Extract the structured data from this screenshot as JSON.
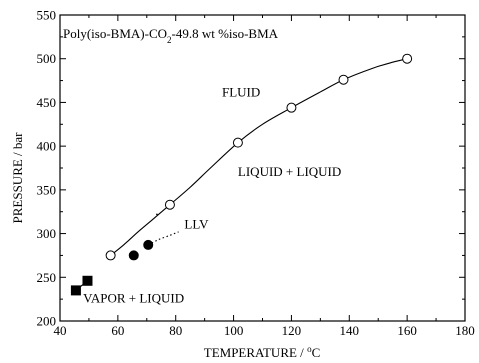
{
  "chart_data": {
    "type": "scatter",
    "title_main": "Poly(iso-BMA)-CO",
    "title_sub": "2",
    "title_rest": "-49.8 wt %iso-BMA",
    "xlabel_main": "TEMPERATURE / ",
    "xlabel_deg": "o",
    "xlabel_unit": "C",
    "ylabel": "PRESSURE / bar",
    "xlim": [
      40,
      180
    ],
    "ylim": [
      200,
      550
    ],
    "x_ticks": [
      40,
      60,
      80,
      100,
      120,
      140,
      160,
      180
    ],
    "y_ticks": [
      200,
      250,
      300,
      350,
      400,
      450,
      500,
      550
    ],
    "x_tick_labels": [
      "40",
      "60",
      "80",
      "100",
      "120",
      "140",
      "160",
      "180"
    ],
    "y_tick_labels": [
      "200",
      "250",
      "300",
      "350",
      "400",
      "450",
      "500",
      "550"
    ],
    "series": [
      {
        "marker": "open-circle",
        "points": [
          [
            57.5,
            275
          ],
          [
            78,
            333
          ],
          [
            101.5,
            404
          ],
          [
            120,
            444
          ],
          [
            138,
            476
          ],
          [
            160,
            500
          ]
        ]
      },
      {
        "marker": "filled-circle",
        "points": [
          [
            65.5,
            275
          ],
          [
            70.5,
            287
          ]
        ]
      },
      {
        "marker": "filled-square",
        "points": [
          [
            45.5,
            235
          ],
          [
            49.5,
            246
          ]
        ]
      }
    ],
    "curves": [
      {
        "style": "solid",
        "points": [
          [
            57.5,
            275
          ],
          [
            62,
            287
          ],
          [
            67,
            302
          ],
          [
            72,
            316
          ],
          [
            78,
            333
          ],
          [
            85,
            353
          ],
          [
            92,
            375
          ],
          [
            101.5,
            404
          ],
          [
            110,
            425
          ],
          [
            120,
            444
          ],
          [
            130,
            462
          ],
          [
            138,
            476
          ],
          [
            148,
            489
          ],
          [
            155,
            496
          ],
          [
            160,
            500
          ]
        ]
      },
      {
        "style": "dotted",
        "points": [
          [
            70.5,
            287
          ],
          [
            74,
            293
          ],
          [
            78,
            298
          ],
          [
            81,
            302
          ]
        ]
      },
      {
        "style": "solid",
        "points": [
          [
            45.5,
            235
          ],
          [
            47.5,
            240.5
          ],
          [
            49.5,
            246
          ]
        ]
      }
    ],
    "annotations": [
      {
        "text": "FLUID",
        "x": 96,
        "y": 457
      },
      {
        "text": "LIQUID + LIQUID",
        "x": 101.5,
        "y": 366
      },
      {
        "text": "LLV",
        "x": 83,
        "y": 306
      },
      {
        "text": "VAPOR + LIQUID",
        "x": 48,
        "y": 221
      }
    ]
  }
}
